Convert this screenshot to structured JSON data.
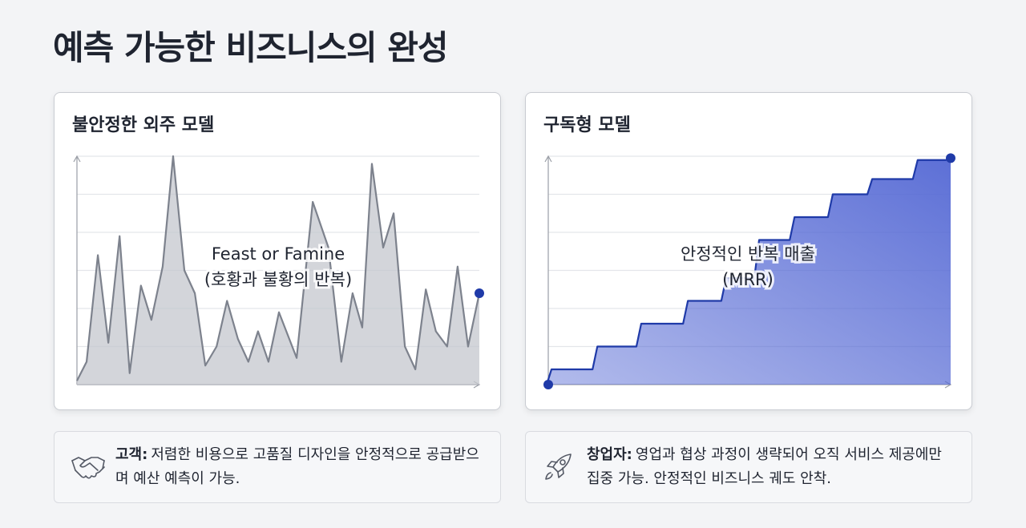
{
  "title": "예측 가능한 비즈니스의 완성",
  "chart_data": [
    {
      "type": "area",
      "title": "불안정한 외주 모델",
      "x": [
        0,
        2.4,
        5.2,
        7.8,
        10.6,
        13.1,
        15.9,
        18.5,
        21.3,
        23.9,
        26.7,
        29.3,
        31.9,
        34.7,
        37.3,
        40.0,
        42.6,
        45.0,
        47.6,
        50.2,
        54.6,
        58.6,
        62.5,
        65.7,
        68.5,
        70.9,
        73.3,
        76.1,
        78.7,
        81.5,
        84.1,
        86.7,
        89.2,
        92.0,
        94.6,
        97.2,
        100
      ],
      "values": [
        0.1,
        0.6,
        3.4,
        1.1,
        3.9,
        0.3,
        2.6,
        1.7,
        3.1,
        6.0,
        3.0,
        2.4,
        0.5,
        1.0,
        2.2,
        1.2,
        0.6,
        1.4,
        0.6,
        1.9,
        0.7,
        4.8,
        3.6,
        0.6,
        2.4,
        1.5,
        5.8,
        3.6,
        4.5,
        1.0,
        0.4,
        2.5,
        1.4,
        1.0,
        3.1,
        1.0,
        2.4
      ],
      "xlim": [
        0,
        100
      ],
      "ylim": [
        0,
        6
      ],
      "ygrid": [
        1,
        2,
        3,
        4,
        5,
        6
      ],
      "color": "#7d828d",
      "fill": "#c4c7ce",
      "marker_color": "#1f3aa8",
      "annotation": [
        "Feast or Famine",
        "(호황과 불황의 반복)"
      ]
    },
    {
      "type": "step",
      "title": "구독형 모델",
      "x": [
        0,
        0.8,
        12.2,
        23.1,
        34.7,
        44.2,
        52.4,
        61.2,
        70.7,
        80.5,
        91.8,
        100
      ],
      "values": [
        0,
        0.4,
        1.0,
        1.6,
        2.2,
        2.8,
        3.8,
        4.4,
        5.0,
        5.4,
        5.9,
        5.95
      ],
      "xlim": [
        0,
        100
      ],
      "ylim": [
        0,
        6
      ],
      "ygrid": [
        1,
        2,
        3,
        4,
        5,
        6
      ],
      "color": "#1f3aa8",
      "fill": "#5468d4",
      "marker_color": "#1f3aa8",
      "annotation": [
        "안정적인 반복 매출",
        "(MRR)"
      ]
    }
  ],
  "notes": [
    {
      "label": "고객:",
      "text": "저렴한 비용으로 고품질 디자인을 안정적으로 공급받으며 예산 예측이 가능."
    },
    {
      "label": "창업자:",
      "text": "영업과 협상 과정이 생략되어 오직 서비스 제공에만 집중 가능. 안정적인 비즈니스 궤도 안착."
    }
  ]
}
